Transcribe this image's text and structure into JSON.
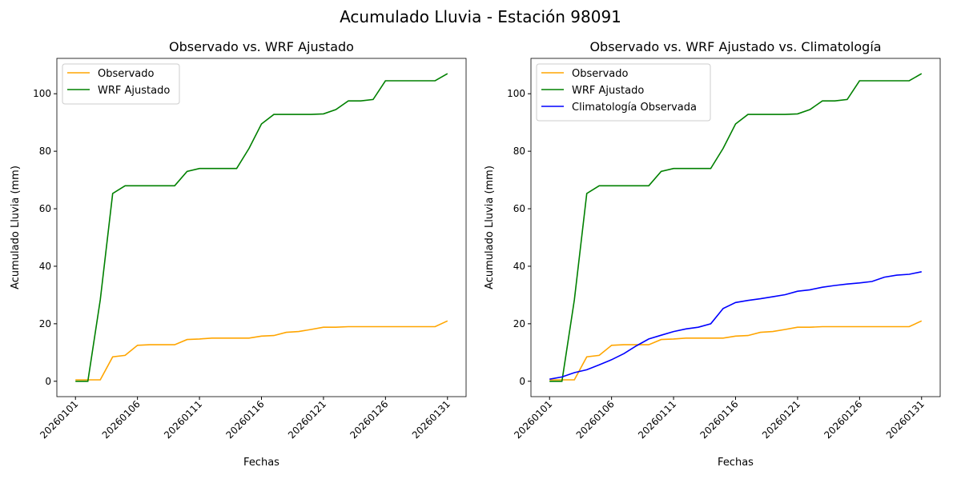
{
  "suptitle": "Acumulado Lluvia - Estación 98091",
  "chart_data": [
    {
      "type": "line",
      "title": "Observado vs. WRF Ajustado",
      "xlabel": "Fechas",
      "ylabel": "Acumulado Lluvia (mm)",
      "ylim": [
        -5.35,
        112.3
      ],
      "yticks": [
        0,
        20,
        40,
        60,
        80,
        100
      ],
      "xtick_labels": [
        "20260101",
        "20260106",
        "20260111",
        "20260116",
        "20260121",
        "20260126",
        "20260131"
      ],
      "legend_placement": "top-left",
      "series": [
        {
          "name": "Observado",
          "color": "#ffa500",
          "values": [
            0.5,
            0.5,
            0.5,
            8.5,
            9,
            12.5,
            12.7,
            12.7,
            12.7,
            14.5,
            14.7,
            15,
            15,
            15,
            15,
            15.7,
            15.9,
            17,
            17.3,
            18,
            18.8,
            18.8,
            19,
            19,
            19,
            19,
            19,
            19,
            19,
            19,
            21
          ]
        },
        {
          "name": "WRF Ajustado",
          "color": "#008000",
          "values": [
            0,
            0,
            28.3,
            65.3,
            68,
            68,
            68,
            68,
            68,
            73,
            74,
            74,
            74,
            74,
            81,
            89.5,
            92.8,
            92.8,
            92.8,
            92.8,
            93,
            94.5,
            97.5,
            97.5,
            98,
            104.5,
            104.5,
            104.5,
            104.5,
            104.5,
            107
          ]
        }
      ]
    },
    {
      "type": "line",
      "title": "Observado vs. WRF Ajustado vs. Climatología",
      "xlabel": "Fechas",
      "ylabel": "Acumulado Lluvia (mm)",
      "ylim": [
        -5.35,
        112.3
      ],
      "yticks": [
        0,
        20,
        40,
        60,
        80,
        100
      ],
      "xtick_labels": [
        "20260101",
        "20260106",
        "20260111",
        "20260116",
        "20260121",
        "20260126",
        "20260131"
      ],
      "legend_placement": "top-left",
      "series": [
        {
          "name": "Observado",
          "color": "#ffa500",
          "values": [
            0.5,
            0.5,
            0.5,
            8.5,
            9,
            12.5,
            12.7,
            12.7,
            12.7,
            14.5,
            14.7,
            15,
            15,
            15,
            15,
            15.7,
            15.9,
            17,
            17.3,
            18,
            18.8,
            18.8,
            19,
            19,
            19,
            19,
            19,
            19,
            19,
            19,
            21
          ]
        },
        {
          "name": "WRF Ajustado",
          "color": "#008000",
          "values": [
            0,
            0,
            28.3,
            65.3,
            68,
            68,
            68,
            68,
            68,
            73,
            74,
            74,
            74,
            74,
            81,
            89.5,
            92.8,
            92.8,
            92.8,
            92.8,
            93,
            94.5,
            97.5,
            97.5,
            98,
            104.5,
            104.5,
            104.5,
            104.5,
            104.5,
            107
          ]
        },
        {
          "name": "Climatología Observada",
          "color": "#0000ff",
          "values": [
            0.7,
            1.5,
            3,
            4,
            5.7,
            7.5,
            9.6,
            12.3,
            14.7,
            16,
            17.3,
            18.2,
            18.8,
            20,
            25.3,
            27.4,
            28.1,
            28.7,
            29.4,
            30.1,
            31.3,
            31.8,
            32.7,
            33.3,
            33.8,
            34.2,
            34.7,
            36.2,
            36.9,
            37.2,
            38.1
          ]
        }
      ]
    }
  ]
}
